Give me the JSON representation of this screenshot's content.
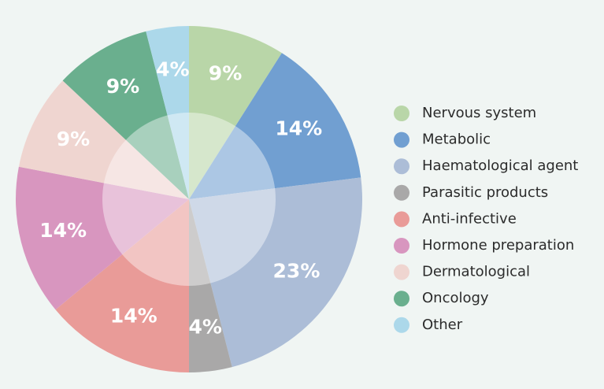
{
  "chart_data": {
    "type": "pie",
    "categories": [
      "Nervous system",
      "Metabolic",
      "Haematological agent",
      "Parasitic products",
      "Anti-infective",
      "Hormone preparation",
      "Dermatological",
      "Oncology",
      "Other"
    ],
    "values": [
      9,
      14,
      23,
      4,
      14,
      14,
      9,
      9,
      4
    ],
    "value_labels": [
      "9%",
      "14%",
      "23%",
      "4%",
      "14%",
      "14%",
      "9%",
      "9%",
      "4%"
    ],
    "colors": [
      "#b9d6a8",
      "#719fd1",
      "#acbdd7",
      "#a9a8a8",
      "#e99b98",
      "#d896bf",
      "#efd5d0",
      "#6aaf8e",
      "#acd8ea"
    ],
    "legend": "right"
  }
}
